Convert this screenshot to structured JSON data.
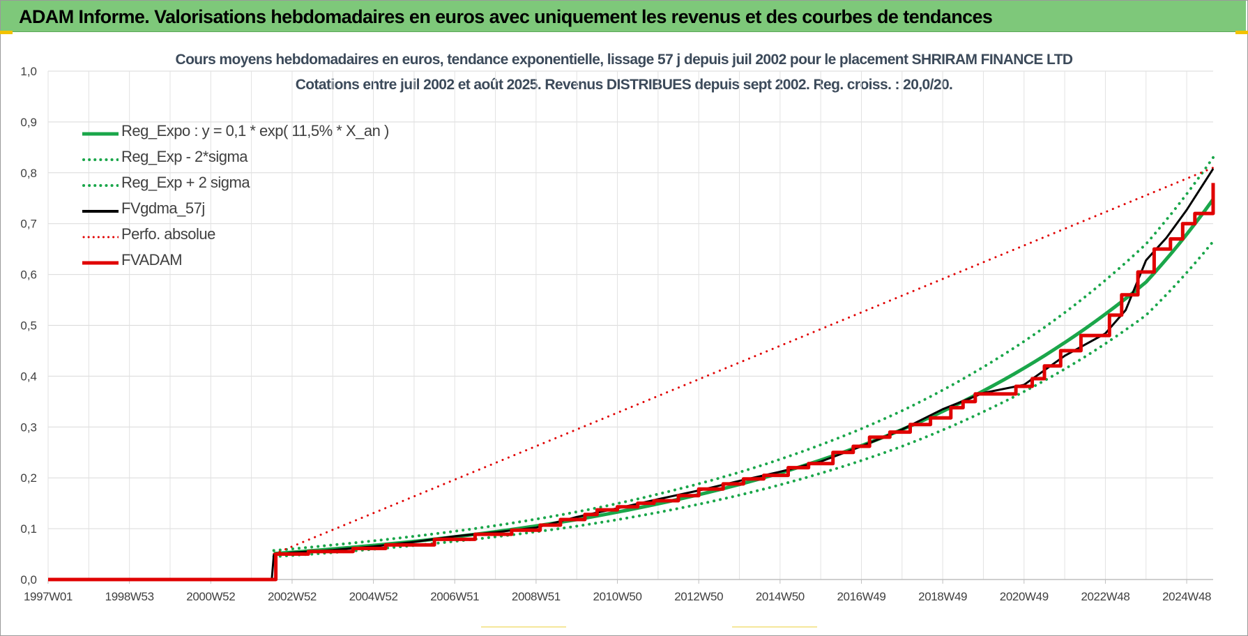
{
  "header": {
    "title": "ADAM Informe. Valorisations hebdomadaires en euros avec uniquement les revenus et des courbes de tendances"
  },
  "chart_data": {
    "type": "line",
    "title": "Cours moyens hebdomadaires en euros, tendance exponentielle, lissage 57 j depuis juil 2002 pour le placement SHRIRAM FINANCE LTD",
    "subtitle": "Cotations entre juil 2002 et août 2025. Revenus DISTRIBUES depuis sept 2002. Reg. croiss. : 20,0/20.",
    "xlabel": "",
    "ylabel": "",
    "ylim": [
      0,
      1
    ],
    "yticks": [
      "0,0",
      "0,1",
      "0,2",
      "0,3",
      "0,4",
      "0,5",
      "0,6",
      "0,7",
      "0,8",
      "0,9",
      "1,0"
    ],
    "xlim": [
      1997.0,
      2025.65
    ],
    "xticks": [
      {
        "x": 1997.0,
        "label": "1997W01"
      },
      {
        "x": 1999.0,
        "label": "1998W53"
      },
      {
        "x": 2001.0,
        "label": "2000W52"
      },
      {
        "x": 2003.0,
        "label": "2002W52"
      },
      {
        "x": 2005.0,
        "label": "2004W52"
      },
      {
        "x": 2007.0,
        "label": "2006W51"
      },
      {
        "x": 2009.0,
        "label": "2008W51"
      },
      {
        "x": 2011.0,
        "label": "2010W50"
      },
      {
        "x": 2013.0,
        "label": "2012W50"
      },
      {
        "x": 2015.0,
        "label": "2014W50"
      },
      {
        "x": 2017.0,
        "label": "2016W49"
      },
      {
        "x": 2019.0,
        "label": "2018W49"
      },
      {
        "x": 2021.0,
        "label": "2020W49"
      },
      {
        "x": 2023.0,
        "label": "2022W48"
      },
      {
        "x": 2025.0,
        "label": "2024W48"
      }
    ],
    "grid": true,
    "legend_position": "top-left",
    "series": [
      {
        "name": "Reg_Expo : y = 0,1 * exp( 11,5% *  X_an )",
        "color": "#1aa64a",
        "style": "solid",
        "width": 5,
        "x": [
          2002.55,
          2004,
          2006,
          2008,
          2010,
          2012,
          2014,
          2016,
          2018,
          2020,
          2022,
          2024,
          2025.65
        ],
        "y": [
          0.051,
          0.06,
          0.075,
          0.094,
          0.118,
          0.149,
          0.187,
          0.235,
          0.295,
          0.371,
          0.466,
          0.585,
          0.748
        ]
      },
      {
        "name": "Reg_Exp - 2*sigma",
        "color": "#1aa64a",
        "style": "dotted",
        "width": 4,
        "x": [
          2002.55,
          2004,
          2006,
          2008,
          2010,
          2012,
          2014,
          2016,
          2018,
          2020,
          2022,
          2024,
          2025.65
        ],
        "y": [
          0.045,
          0.053,
          0.067,
          0.084,
          0.105,
          0.132,
          0.166,
          0.209,
          0.262,
          0.33,
          0.414,
          0.52,
          0.665
        ]
      },
      {
        "name": "Reg_Exp + 2 sigma",
        "color": "#1aa64a",
        "style": "dotted",
        "width": 4,
        "x": [
          2002.55,
          2004,
          2006,
          2008,
          2010,
          2012,
          2014,
          2016,
          2018,
          2020,
          2022,
          2024,
          2025.65
        ],
        "y": [
          0.057,
          0.068,
          0.085,
          0.106,
          0.133,
          0.168,
          0.211,
          0.265,
          0.332,
          0.418,
          0.525,
          0.66,
          0.83
        ]
      },
      {
        "name": "FVgdma_57j",
        "color": "#000000",
        "style": "solid",
        "width": 3,
        "x": [
          1997.0,
          2002.5,
          2002.55,
          2003,
          2004,
          2005,
          2006,
          2007,
          2008,
          2009,
          2010,
          2011,
          2012,
          2013,
          2014,
          2015,
          2016,
          2017,
          2018,
          2019,
          2020,
          2021,
          2022,
          2023,
          2023.5,
          2024,
          2024.5,
          2025,
          2025.65
        ],
        "y": [
          0.0,
          0.0,
          0.048,
          0.053,
          0.058,
          0.065,
          0.074,
          0.085,
          0.093,
          0.102,
          0.123,
          0.14,
          0.158,
          0.175,
          0.194,
          0.212,
          0.232,
          0.262,
          0.295,
          0.335,
          0.367,
          0.383,
          0.44,
          0.484,
          0.53,
          0.628,
          0.672,
          0.727,
          0.808
        ]
      },
      {
        "name": "Perfo. absolue",
        "color": "#e00000",
        "style": "dotted",
        "width": 3,
        "x": [
          2002.55,
          2025.65
        ],
        "y": [
          0.05,
          0.81
        ]
      },
      {
        "name": "FVADAM",
        "color": "#e00000",
        "style": "solid",
        "width": 5,
        "step": true,
        "x": [
          1997.0,
          2002.55,
          2002.6,
          2003.4,
          2004.5,
          2005.3,
          2006.5,
          2007.5,
          2008.4,
          2009.1,
          2009.6,
          2010.2,
          2010.5,
          2011.0,
          2011.5,
          2011.9,
          2012.5,
          2013.0,
          2013.6,
          2014.1,
          2014.6,
          2015.2,
          2015.7,
          2016.3,
          2016.8,
          2017.2,
          2017.7,
          2018.2,
          2018.7,
          2019.2,
          2019.5,
          2019.8,
          2020.8,
          2021.2,
          2021.5,
          2021.9,
          2022.4,
          2022.7,
          2023.1,
          2023.4,
          2023.8,
          2024.2,
          2024.6,
          2024.9,
          2025.2,
          2025.65
        ],
        "y": [
          0.0,
          0.0,
          0.05,
          0.055,
          0.061,
          0.068,
          0.079,
          0.089,
          0.097,
          0.107,
          0.118,
          0.128,
          0.137,
          0.143,
          0.15,
          0.155,
          0.165,
          0.178,
          0.188,
          0.198,
          0.205,
          0.22,
          0.228,
          0.25,
          0.262,
          0.28,
          0.29,
          0.305,
          0.318,
          0.338,
          0.35,
          0.365,
          0.38,
          0.395,
          0.42,
          0.45,
          0.48,
          0.48,
          0.52,
          0.56,
          0.605,
          0.65,
          0.67,
          0.7,
          0.72,
          0.78
        ]
      }
    ]
  }
}
